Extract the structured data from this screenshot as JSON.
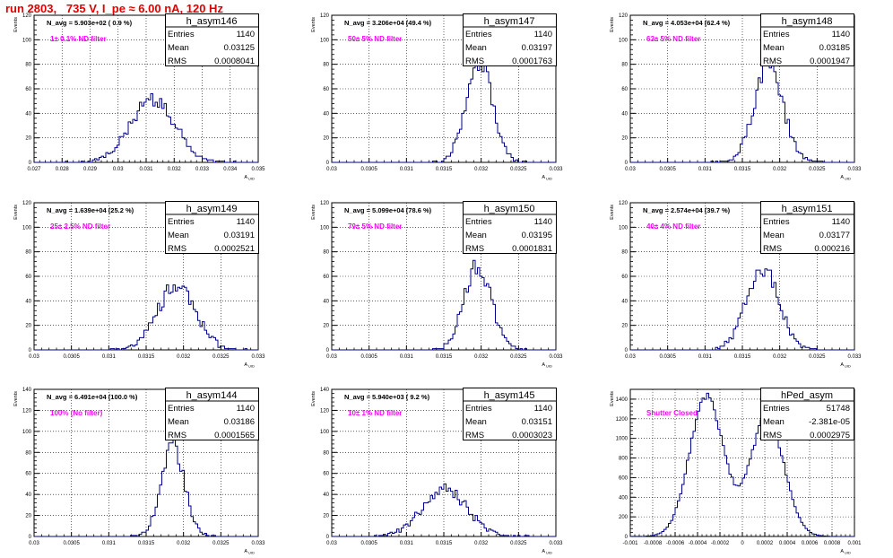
{
  "header": {
    "title": "run 2803,   735 V, I_pe ≈ 6.00 nA, 120 Hz",
    "title_color": "#e00000"
  },
  "colors": {
    "histogram_line": "#00008b",
    "annotation_text": "#ff00ff",
    "grid": "#000000",
    "axis": "#000000"
  },
  "common": {
    "y_axis_label": "Events",
    "x_axis_label": "A",
    "x_axis_label_sub": "UID",
    "stats_labels": [
      "Entries",
      "Mean",
      "RMS"
    ]
  },
  "chart_data": [
    {
      "type": "histogram",
      "name": "h_asym146",
      "navg_text": "N_avg = 5.903e+02 ( 0.9 %)",
      "filter_text": "1± 0.1% ND filter",
      "entries": "1140",
      "mean": "0.03125",
      "rms": "0.0008041",
      "mean_value": 0.03125,
      "rms_value": 0.0008041,
      "xlim": [
        0.027,
        0.035
      ],
      "ylim": [
        0,
        120
      ],
      "xticks": [
        0.027,
        0.028,
        0.029,
        0.03,
        0.031,
        0.032,
        0.033,
        0.034,
        0.035
      ],
      "xtick_labels": [
        "0.027",
        "0.028",
        "0.029",
        "0.03",
        "0.031",
        "0.032",
        "0.033",
        "0.034",
        "0.035"
      ],
      "yticks": [
        0,
        20,
        40,
        60,
        80,
        100,
        120
      ],
      "peak": 56,
      "bins": 100
    },
    {
      "type": "histogram",
      "name": "h_asym147",
      "navg_text": "N_avg = 3.206e+04 (49.4 %)",
      "filter_text": "50± 5% ND filter",
      "entries": "1140",
      "mean": "0.03197",
      "rms": "0.0001763",
      "mean_value": 0.03197,
      "rms_value": 0.0001763,
      "xlim": [
        0.03,
        0.033
      ],
      "ylim": [
        0,
        120
      ],
      "xticks": [
        0.03,
        0.0305,
        0.031,
        0.0315,
        0.032,
        0.0325,
        0.033
      ],
      "xtick_labels": [
        "0.03",
        "0.0305",
        "0.031",
        "0.0315",
        "0.032",
        "0.0325",
        "0.033"
      ],
      "yticks": [
        0,
        20,
        40,
        60,
        80,
        100,
        120
      ],
      "peak": 85,
      "bins": 100
    },
    {
      "type": "histogram",
      "name": "h_asym148",
      "navg_text": "N_avg = 4.053e+04 (62.4 %)",
      "filter_text": "63± 5% ND filter",
      "entries": "1140",
      "mean": "0.03185",
      "rms": "0.0001947",
      "mean_value": 0.03185,
      "rms_value": 0.0001947,
      "xlim": [
        0.03,
        0.033
      ],
      "ylim": [
        0,
        120
      ],
      "xticks": [
        0.03,
        0.0305,
        0.031,
        0.0315,
        0.032,
        0.0325,
        0.033
      ],
      "xtick_labels": [
        "0.03",
        "0.0305",
        "0.031",
        "0.0315",
        "0.032",
        "0.0325",
        "0.033"
      ],
      "yticks": [
        0,
        20,
        40,
        60,
        80,
        100,
        120
      ],
      "peak": 85,
      "bins": 100
    },
    {
      "type": "histogram",
      "name": "h_asym149",
      "navg_text": "N_avg = 1.639e+04 (25.2 %)",
      "filter_text": "25± 2.5% ND filter",
      "entries": "1140",
      "mean": "0.03191",
      "rms": "0.0002521",
      "mean_value": 0.03191,
      "rms_value": 0.0002521,
      "xlim": [
        0.03,
        0.033
      ],
      "ylim": [
        0,
        120
      ],
      "xticks": [
        0.03,
        0.0305,
        0.031,
        0.0315,
        0.032,
        0.0325,
        0.033
      ],
      "xtick_labels": [
        "0.03",
        "0.0305",
        "0.031",
        "0.0315",
        "0.032",
        "0.0325",
        "0.033"
      ],
      "yticks": [
        0,
        20,
        40,
        60,
        80,
        100,
        120
      ],
      "peak": 53,
      "bins": 100
    },
    {
      "type": "histogram",
      "name": "h_asym150",
      "navg_text": "N_avg = 5.099e+04 (78.6 %)",
      "filter_text": "79± 5% ND filter",
      "entries": "1140",
      "mean": "0.03195",
      "rms": "0.0001831",
      "mean_value": 0.03195,
      "rms_value": 0.0001831,
      "xlim": [
        0.03,
        0.033
      ],
      "ylim": [
        0,
        120
      ],
      "xticks": [
        0.03,
        0.0305,
        0.031,
        0.0315,
        0.032,
        0.0325,
        0.033
      ],
      "xtick_labels": [
        "0.03",
        "0.0305",
        "0.031",
        "0.0315",
        "0.032",
        "0.0325",
        "0.033"
      ],
      "yticks": [
        0,
        20,
        40,
        60,
        80,
        100,
        120
      ],
      "peak": 73,
      "bins": 100
    },
    {
      "type": "histogram",
      "name": "h_asym151",
      "navg_text": "N_avg = 2.574e+04 (39.7 %)",
      "filter_text": "40± 4% ND filter",
      "entries": "1140",
      "mean": "0.03177",
      "rms": "0.000216",
      "mean_value": 0.03177,
      "rms_value": 0.000216,
      "xlim": [
        0.03,
        0.033
      ],
      "ylim": [
        0,
        120
      ],
      "xticks": [
        0.03,
        0.0305,
        0.031,
        0.0315,
        0.032,
        0.0325,
        0.033
      ],
      "xtick_labels": [
        "0.03",
        "0.0305",
        "0.031",
        "0.0315",
        "0.032",
        "0.0325",
        "0.033"
      ],
      "yticks": [
        0,
        20,
        40,
        60,
        80,
        100,
        120
      ],
      "peak": 67,
      "bins": 100
    },
    {
      "type": "histogram",
      "name": "h_asym144",
      "navg_text": "N_avg = 6.491e+04 (100.0 %)",
      "filter_text": "100% (No filter)",
      "entries": "1140",
      "mean": "0.03186",
      "rms": "0.0001565",
      "mean_value": 0.03186,
      "rms_value": 0.0001565,
      "xlim": [
        0.03,
        0.033
      ],
      "ylim": [
        0,
        140
      ],
      "xticks": [
        0.03,
        0.0305,
        0.031,
        0.0315,
        0.032,
        0.0325,
        0.033
      ],
      "xtick_labels": [
        "0.03",
        "0.0305",
        "0.031",
        "0.0315",
        "0.032",
        "0.0325",
        "0.033"
      ],
      "yticks": [
        0,
        20,
        40,
        60,
        80,
        100,
        120,
        140
      ],
      "peak": 92,
      "bins": 100
    },
    {
      "type": "histogram",
      "name": "h_asym145",
      "navg_text": "N_avg = 5.940e+03 ( 9.2 %)",
      "filter_text": "10± 1% ND filter",
      "entries": "1140",
      "mean": "0.03151",
      "rms": "0.0003023",
      "mean_value": 0.03151,
      "rms_value": 0.0003023,
      "xlim": [
        0.03,
        0.033
      ],
      "ylim": [
        0,
        140
      ],
      "xticks": [
        0.03,
        0.0305,
        0.031,
        0.0315,
        0.032,
        0.0325,
        0.033
      ],
      "xtick_labels": [
        "0.03",
        "0.0305",
        "0.031",
        "0.0315",
        "0.032",
        "0.0325",
        "0.033"
      ],
      "yticks": [
        0,
        20,
        40,
        60,
        80,
        100,
        120,
        140
      ],
      "peak": 50,
      "bins": 100
    },
    {
      "type": "histogram",
      "name": "hPed_asym",
      "navg_text": "",
      "filter_text": "Shutter Closed",
      "entries": "51748",
      "mean": "-2.381e-05",
      "rms": "0.0002975",
      "mean_value": -2.381e-05,
      "rms_value": 0.0002975,
      "xlim": [
        -0.001,
        0.001
      ],
      "ylim": [
        0,
        1500
      ],
      "xticks": [
        -0.001,
        -0.0008,
        -0.0006,
        -0.0004,
        -0.0002,
        0,
        0.0002,
        0.0004,
        0.0006,
        0.0008,
        0.001
      ],
      "xtick_labels": [
        "-0.001",
        "-0.0008",
        "-0.0006",
        "-0.0004",
        "-0.0002",
        "0",
        "0.0002",
        "0.0004",
        "0.0006",
        "0.0008",
        "0.001"
      ],
      "yticks": [
        0,
        200,
        400,
        600,
        800,
        1000,
        1200,
        1400
      ],
      "bimodal": true,
      "modes": [
        {
          "center": -0.00032,
          "sigma": 0.00015,
          "peak": 1460
        },
        {
          "center": 0.00022,
          "sigma": 0.00015,
          "peak": 1240
        }
      ],
      "bins": 100
    }
  ]
}
